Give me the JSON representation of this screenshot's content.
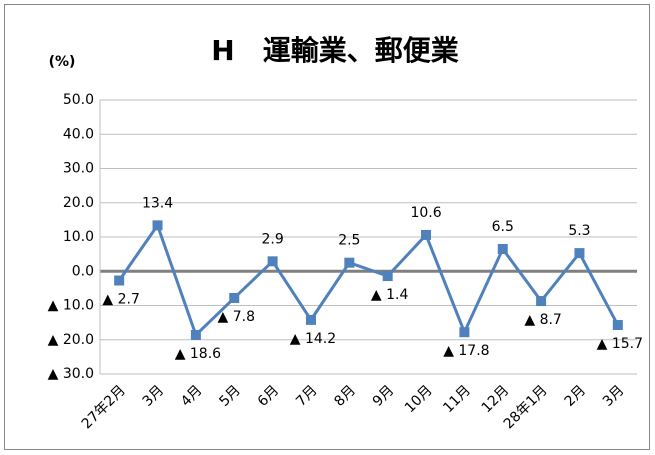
{
  "chart_data": {
    "type": "line",
    "title": "H　運輸業、郵便業",
    "y_label": "(%)",
    "categories": [
      "27年2月",
      "3月",
      "4月",
      "5月",
      "6月",
      "7月",
      "8月",
      "9月",
      "10月",
      "11月",
      "12月",
      "28年1月",
      "2月",
      "3月"
    ],
    "series": [
      {
        "name": "運輸業、郵便業",
        "color": "#4f81bd",
        "values": [
          -2.7,
          13.4,
          -18.6,
          -7.8,
          2.9,
          -14.2,
          2.5,
          -1.4,
          10.6,
          -17.8,
          6.5,
          -8.7,
          5.3,
          -15.7
        ],
        "value_labels": [
          "▲ 2.7",
          "13.4",
          "▲ 18.6",
          "▲ 7.8",
          "2.9",
          "▲ 14.2",
          "2.5",
          "▲ 1.4",
          "10.6",
          "▲ 17.8",
          "6.5",
          "▲ 8.7",
          "5.3",
          "▲ 15.7"
        ]
      }
    ],
    "ylim": [
      -30,
      50
    ],
    "yticks": [
      {
        "value": 50,
        "label": "50.0"
      },
      {
        "value": 40,
        "label": "40.0"
      },
      {
        "value": 30,
        "label": "30.0"
      },
      {
        "value": 20,
        "label": "20.0"
      },
      {
        "value": 10,
        "label": "10.0"
      },
      {
        "value": 0,
        "label": "0.0"
      },
      {
        "value": -10,
        "label": "▲ 10.0"
      },
      {
        "value": -20,
        "label": "▲ 20.0"
      },
      {
        "value": -30,
        "label": "▲ 30.0"
      }
    ],
    "grid": true
  }
}
